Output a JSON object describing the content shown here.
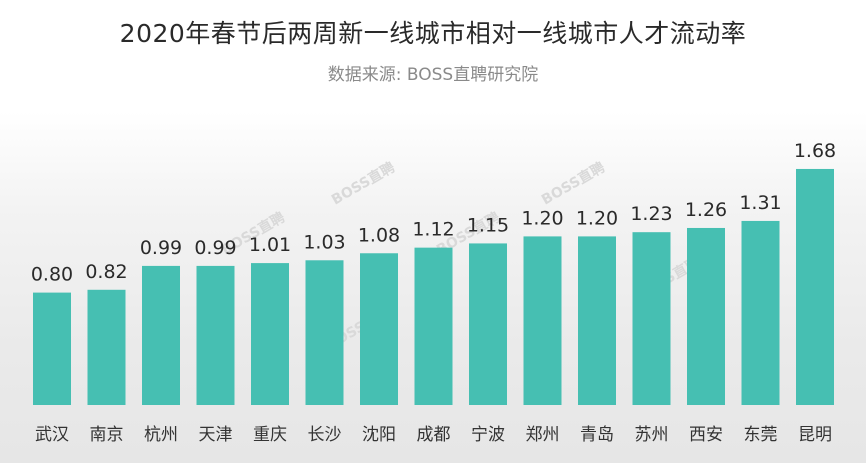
{
  "title": "2020年春节后两周新一线城市相对一线城市人才流动率",
  "subtitle": "数据来源: BOSS直聘研究院",
  "watermark": "BOSS直聘",
  "colors": {
    "bar": "#46bfb2"
  },
  "chart_data": {
    "type": "bar",
    "title": "2020年春节后两周新一线城市相对一线城市人才流动率",
    "subtitle": "数据来源: BOSS直聘研究院",
    "categories": [
      "武汉",
      "南京",
      "杭州",
      "天津",
      "重庆",
      "长沙",
      "沈阳",
      "成都",
      "宁波",
      "郑州",
      "青岛",
      "苏州",
      "西安",
      "东莞",
      "昆明"
    ],
    "values": [
      0.8,
      0.82,
      0.99,
      0.99,
      1.01,
      1.03,
      1.08,
      1.12,
      1.15,
      1.2,
      1.2,
      1.23,
      1.26,
      1.31,
      1.68
    ],
    "value_labels": [
      "0.80",
      "0.82",
      "0.99",
      "0.99",
      "1.01",
      "1.03",
      "1.08",
      "1.12",
      "1.15",
      "1.20",
      "1.20",
      "1.23",
      "1.26",
      "1.31",
      "1.68"
    ],
    "xlabel": "",
    "ylabel": "",
    "grid": false,
    "legend": "none"
  }
}
